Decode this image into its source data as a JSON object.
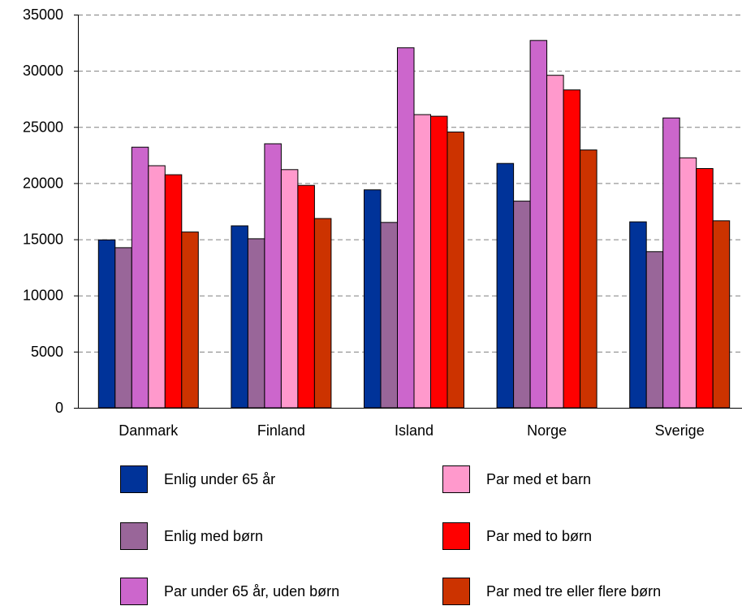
{
  "chart_data": {
    "type": "bar",
    "categories": [
      "Danmark",
      "Finland",
      "Island",
      "Norge",
      "Sverige"
    ],
    "ylim": [
      0,
      35000
    ],
    "yticks": [
      0,
      5000,
      10000,
      15000,
      20000,
      25000,
      30000,
      35000
    ],
    "grid": true,
    "legend_position": "bottom",
    "series": [
      {
        "name": "Enlig under 65 år",
        "color": "#003399",
        "values": [
          14950,
          16200,
          19400,
          21750,
          16550
        ]
      },
      {
        "name": "Enlig med børn",
        "color": "#996699",
        "values": [
          14250,
          15050,
          16500,
          18400,
          13900
        ]
      },
      {
        "name": "Par under 65 år, uden børn",
        "color": "#CC66CC",
        "values": [
          23200,
          23500,
          32050,
          32700,
          25800
        ]
      },
      {
        "name": "Par med et barn",
        "color": "#FF99CC",
        "values": [
          21550,
          21200,
          26100,
          29600,
          22250
        ]
      },
      {
        "name": "Par med to børn",
        "color": "#FF0000",
        "values": [
          20750,
          19800,
          25950,
          28300,
          21300
        ]
      },
      {
        "name": "Par med tre eller flere børn",
        "color": "#CC3300",
        "values": [
          15650,
          16850,
          24550,
          22950,
          16650
        ]
      }
    ]
  }
}
